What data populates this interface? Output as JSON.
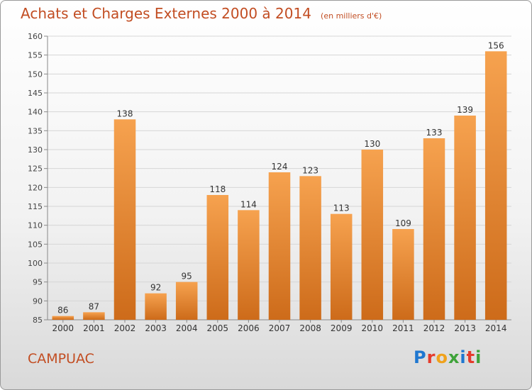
{
  "header": {
    "title": "Achats et Charges Externes 2000 à 2014",
    "unit": "(en milliers d'€)"
  },
  "footer": {
    "commune": "CAMPUAC",
    "logo": {
      "text": "Proxiti",
      "colors": [
        "#1f77d0",
        "#e53b2c",
        "#f0a21c",
        "#3fa33a",
        "#1f77d0",
        "#e53b2c",
        "#3fa33a"
      ]
    }
  },
  "colors": {
    "title": "#c24d22",
    "bar_light": "#f6a24f",
    "bar_dark": "#cd6b1a"
  },
  "chart_data": {
    "type": "bar",
    "categories": [
      "2000",
      "2001",
      "2002",
      "2003",
      "2004",
      "2005",
      "2006",
      "2007",
      "2008",
      "2009",
      "2010",
      "2011",
      "2012",
      "2013",
      "2014"
    ],
    "values": [
      86,
      87,
      138,
      92,
      95,
      118,
      114,
      124,
      123,
      113,
      130,
      109,
      133,
      139,
      156
    ],
    "ylim": [
      85,
      160
    ],
    "yticks": [
      85,
      90,
      95,
      100,
      105,
      110,
      115,
      120,
      125,
      130,
      135,
      140,
      145,
      150,
      155,
      160
    ],
    "grid": true
  }
}
